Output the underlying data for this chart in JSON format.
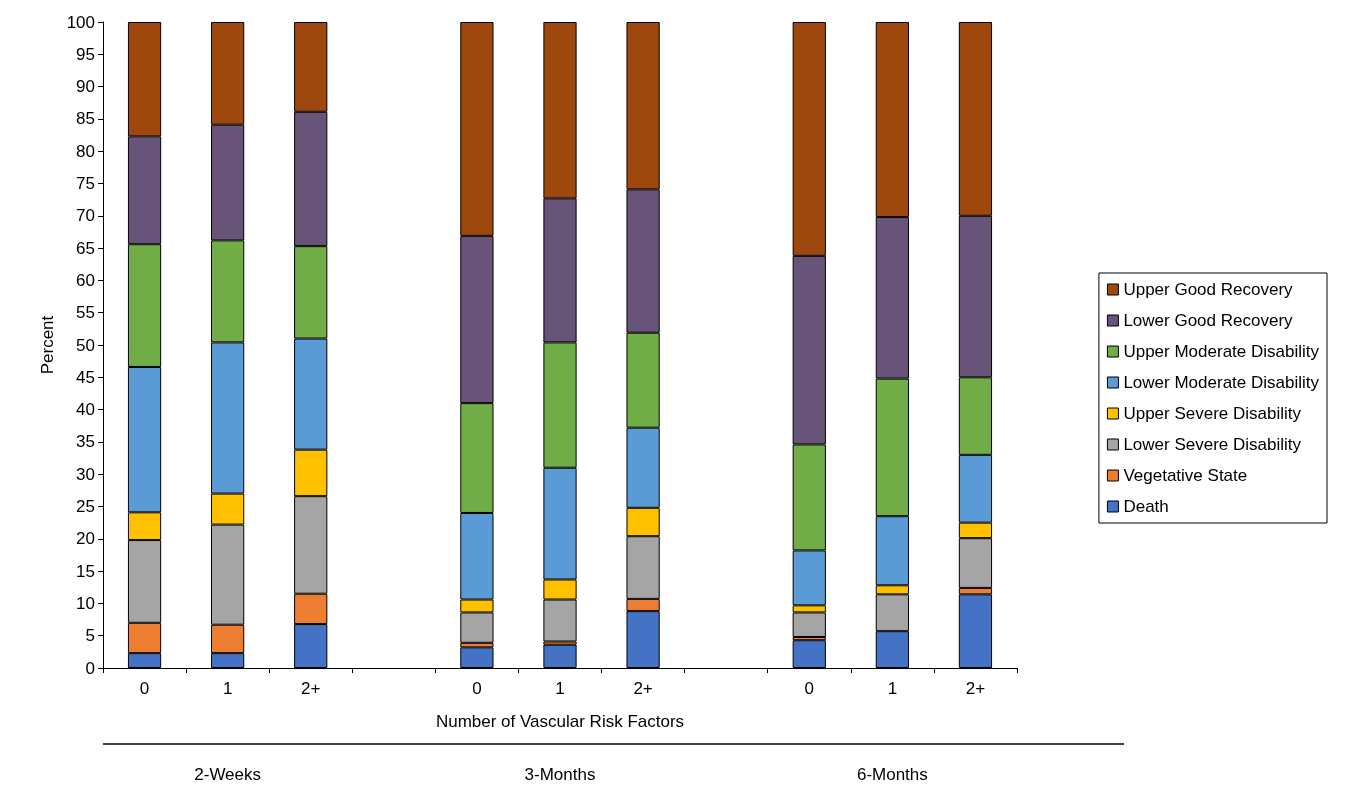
{
  "chart_data": {
    "type": "bar",
    "stacked": true,
    "xlabel": "Number of Vascular Risk Factors",
    "ylabel": "Percent",
    "categories": [
      "0",
      "1",
      "2+",
      null,
      "0",
      "1",
      "2+",
      null,
      "0",
      "1",
      "2+"
    ],
    "ylim": [
      0,
      100
    ],
    "yticks": [
      0,
      5,
      10,
      15,
      20,
      25,
      30,
      35,
      40,
      45,
      50,
      55,
      60,
      65,
      70,
      75,
      80,
      85,
      90,
      95,
      100
    ],
    "grid": false,
    "legend": "right",
    "annotations": [
      "2-Weeks",
      "3-Months",
      "6-Months"
    ],
    "series": [
      {
        "name": "Death",
        "color": "#4472c4",
        "values": [
          2.3,
          2.3,
          6.8,
          null,
          3.2,
          3.6,
          8.8,
          null,
          4.3,
          5.7,
          11.4
        ]
      },
      {
        "name": "Vegetative State",
        "color": "#ed7d31",
        "values": [
          4.7,
          4.4,
          4.7,
          null,
          0.7,
          0.5,
          1.9,
          null,
          0.5,
          null,
          1.0
        ]
      },
      {
        "name": "Lower Severe Disability",
        "color": "#a5a5a5",
        "values": [
          12.8,
          15.5,
          15.1,
          null,
          4.7,
          6.5,
          9.7,
          null,
          3.8,
          5.7,
          7.7
        ]
      },
      {
        "name": "Upper Severe Disability",
        "color": "#ffc000",
        "values": [
          4.3,
          4.8,
          7.2,
          null,
          2.0,
          3.1,
          4.4,
          null,
          1.1,
          1.4,
          2.4
        ]
      },
      {
        "name": "Lower Moderate Disability",
        "color": "#5b9bd5",
        "values": [
          22.5,
          23.4,
          17.2,
          null,
          13.4,
          17.3,
          12.4,
          null,
          8.5,
          10.7,
          10.5
        ]
      },
      {
        "name": "Upper Moderate Disability",
        "color": "#70ad47",
        "values": [
          19.0,
          15.8,
          14.3,
          null,
          17.0,
          19.4,
          14.7,
          null,
          16.4,
          21.3,
          12.0
        ]
      },
      {
        "name": "Lower Good Recovery",
        "color": "#675478",
        "values": [
          16.7,
          17.9,
          20.8,
          null,
          25.9,
          22.3,
          22.2,
          null,
          29.2,
          25.0,
          25.0
        ]
      },
      {
        "name": "Upper Good Recovery",
        "color": "#9e480e",
        "values": [
          17.7,
          15.9,
          13.9,
          null,
          33.1,
          27.3,
          25.9,
          null,
          36.2,
          30.2,
          30.0
        ]
      }
    ]
  }
}
